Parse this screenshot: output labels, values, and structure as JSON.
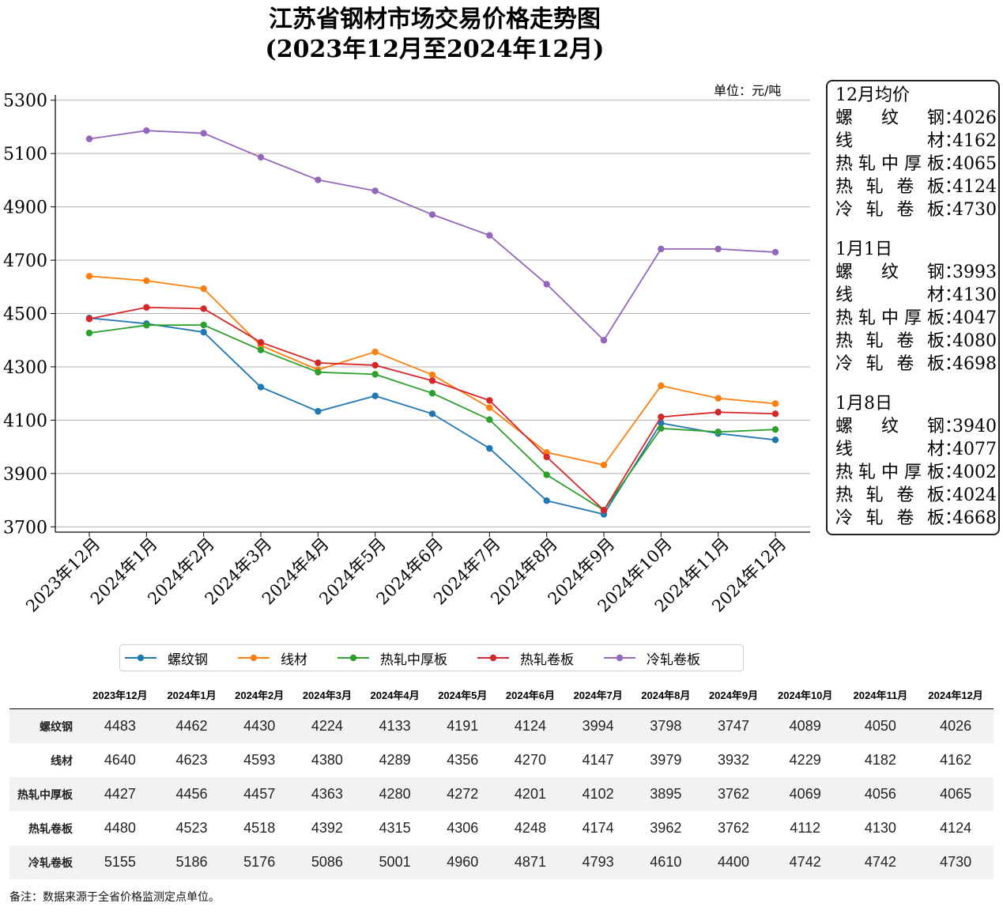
{
  "title_line1": "江苏省钢材市场交易价格走势图",
  "title_line2": "(2023年12月至2024年12月)",
  "unit": "单位：元/吨",
  "chart_data": {
    "type": "line",
    "categories": [
      "2023年12月",
      "2024年1月",
      "2024年2月",
      "2024年3月",
      "2024年4月",
      "2024年5月",
      "2024年6月",
      "2024年7月",
      "2024年8月",
      "2024年9月",
      "2024年10月",
      "2024年11月",
      "2024年12月"
    ],
    "ylim": [
      3680,
      5320
    ],
    "yticks": [
      "3700",
      "3900",
      "4100",
      "4300",
      "4500",
      "4700",
      "4900",
      "5100",
      "5300"
    ],
    "grid": "horizontal",
    "legend_position": "bottom",
    "series": [
      {
        "name": "螺纹钢",
        "color": "#1f77b4",
        "values": [
          4483,
          4462,
          4430,
          4224,
          4133,
          4191,
          4124,
          3994,
          3798,
          3747,
          4089,
          4050,
          4026
        ]
      },
      {
        "name": "线材",
        "color": "#ff7f0e",
        "values": [
          4640,
          4623,
          4593,
          4380,
          4289,
          4356,
          4270,
          4147,
          3979,
          3932,
          4229,
          4182,
          4162
        ]
      },
      {
        "name": "热轧中厚板",
        "color": "#2ca02c",
        "values": [
          4427,
          4456,
          4457,
          4363,
          4280,
          4272,
          4201,
          4102,
          3895,
          3762,
          4069,
          4056,
          4065
        ]
      },
      {
        "name": "热轧卷板",
        "color": "#d62728",
        "values": [
          4480,
          4523,
          4518,
          4392,
          4315,
          4306,
          4248,
          4174,
          3962,
          3762,
          4112,
          4130,
          4124
        ]
      },
      {
        "name": "冷轧卷板",
        "color": "#9467bd",
        "values": [
          5155,
          5186,
          5176,
          5086,
          5001,
          4960,
          4871,
          4793,
          4610,
          4400,
          4742,
          4742,
          4730
        ]
      }
    ]
  },
  "info_box": {
    "groups": [
      {
        "heading": "12月均价",
        "rows": [
          {
            "label": "螺纹钢",
            "value": "4026"
          },
          {
            "label": "线材",
            "value": "4162"
          },
          {
            "label": "热轧中厚板",
            "value": "4065"
          },
          {
            "label": "热轧卷板",
            "value": "4124"
          },
          {
            "label": "冷轧卷板",
            "value": "4730"
          }
        ]
      },
      {
        "heading": "1月1日",
        "rows": [
          {
            "label": "螺纹钢",
            "value": "3993"
          },
          {
            "label": "线材",
            "value": "4130"
          },
          {
            "label": "热轧中厚板",
            "value": "4047"
          },
          {
            "label": "热轧卷板",
            "value": "4080"
          },
          {
            "label": "冷轧卷板",
            "value": "4698"
          }
        ]
      },
      {
        "heading": "1月8日",
        "rows": [
          {
            "label": "螺纹钢",
            "value": "3940"
          },
          {
            "label": "线材",
            "value": "4077"
          },
          {
            "label": "热轧中厚板",
            "value": "4002"
          },
          {
            "label": "热轧卷板",
            "value": "4024"
          },
          {
            "label": "冷轧卷板",
            "value": "4668"
          }
        ]
      }
    ]
  },
  "table": {
    "headers": [
      "2023年12月",
      "2024年1月",
      "2024年2月",
      "2024年3月",
      "2024年4月",
      "2024年5月",
      "2024年6月",
      "2024年7月",
      "2024年8月",
      "2024年9月",
      "2024年10月",
      "2024年11月",
      "2024年12月"
    ],
    "rows": [
      {
        "label": "螺纹钢",
        "values": [
          "4483",
          "4462",
          "4430",
          "4224",
          "4133",
          "4191",
          "4124",
          "3994",
          "3798",
          "3747",
          "4089",
          "4050",
          "4026"
        ]
      },
      {
        "label": "线材",
        "values": [
          "4640",
          "4623",
          "4593",
          "4380",
          "4289",
          "4356",
          "4270",
          "4147",
          "3979",
          "3932",
          "4229",
          "4182",
          "4162"
        ]
      },
      {
        "label": "热轧中厚板",
        "values": [
          "4427",
          "4456",
          "4457",
          "4363",
          "4280",
          "4272",
          "4201",
          "4102",
          "3895",
          "3762",
          "4069",
          "4056",
          "4065"
        ]
      },
      {
        "label": "热轧卷板",
        "values": [
          "4480",
          "4523",
          "4518",
          "4392",
          "4315",
          "4306",
          "4248",
          "4174",
          "3962",
          "3762",
          "4112",
          "4130",
          "4124"
        ]
      },
      {
        "label": "冷轧卷板",
        "values": [
          "5155",
          "5186",
          "5176",
          "5086",
          "5001",
          "4960",
          "4871",
          "4793",
          "4610",
          "4400",
          "4742",
          "4742",
          "4730"
        ]
      }
    ]
  },
  "footnote": "备注：数据来源于全省价格监测定点单位。"
}
